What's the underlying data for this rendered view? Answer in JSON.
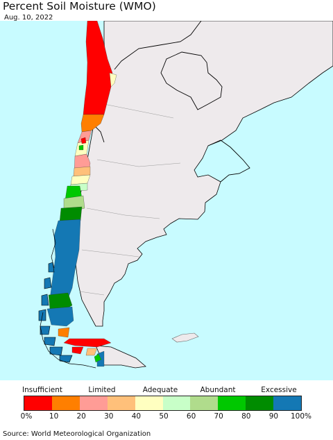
{
  "header": {
    "title": "Percent Soil Moisture (WMO)",
    "date": "Aug. 10, 2022"
  },
  "map": {
    "ocean_color": "#c8fbff",
    "land_color": "#eeeaec",
    "border_color": "#000000"
  },
  "legend": {
    "categories": [
      "Insufficient",
      "Limited",
      "Adequate",
      "Abundant",
      "Excessive"
    ],
    "colors": [
      "#ff0000",
      "#ff7f00",
      "#ff9c96",
      "#ffc07a",
      "#ffffc0",
      "#c8ffc8",
      "#b0dc8c",
      "#00c800",
      "#008c00",
      "#1478b4"
    ],
    "ticks": [
      "0%",
      "10",
      "20",
      "30",
      "40",
      "50",
      "60",
      "70",
      "80",
      "90",
      "100%"
    ]
  },
  "footer": {
    "source": "Source: World Meteorological Organization"
  }
}
